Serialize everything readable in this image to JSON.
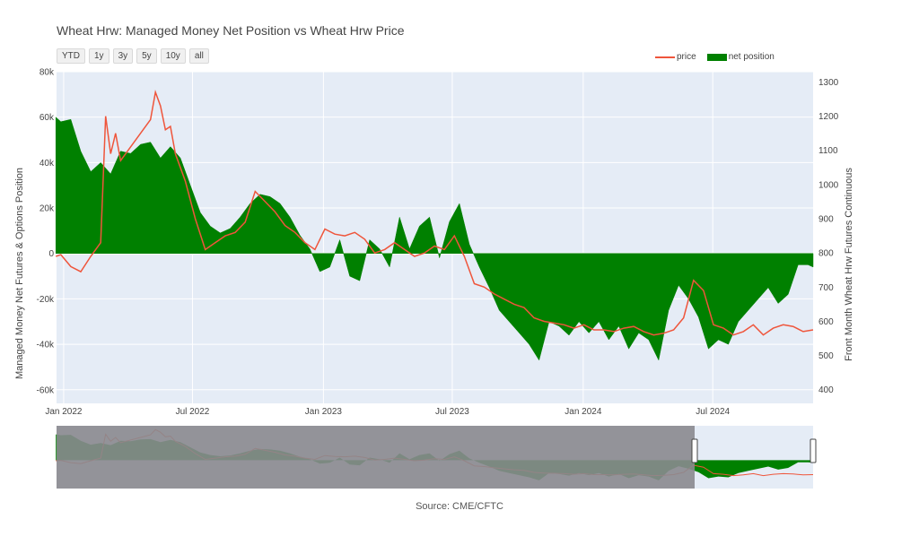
{
  "title": "Wheat Hrw: Managed Money Net Position vs Wheat Hrw Price",
  "range_selector": [
    "YTD",
    "1y",
    "3y",
    "5y",
    "10y",
    "all"
  ],
  "legend": [
    {
      "label": "price",
      "color": "#ef553b",
      "kind": "line"
    },
    {
      "label": "net position",
      "color": "#008000",
      "kind": "fill"
    }
  ],
  "source": "Source: CME/CFTC",
  "colors": {
    "plot_bg": "#e5ecf6",
    "grid": "#ffffff",
    "price": "#ef553b",
    "net": "#008000",
    "slider_mask": "#8a8a8f"
  },
  "chart_data": {
    "type": "area",
    "title": "Wheat Hrw: Managed Money Net Position vs Wheat Hrw Price",
    "x_ticks": [
      "Jan 2022",
      "Jul 2022",
      "Jan 2023",
      "Jul 2023",
      "Jan 2024",
      "Jul 2024"
    ],
    "y_left": {
      "label": "Managed Money Net Futures & Options Position",
      "range": [
        -66000,
        80000
      ],
      "ticks": [
        "80k",
        "60k",
        "40k",
        "20k",
        "0",
        "-20k",
        "-40k",
        "-60k"
      ]
    },
    "y_right": {
      "label": "Front Month Wheat Hrw Futures Continuous",
      "range": [
        360,
        1330
      ],
      "ticks": [
        "1300",
        "1200",
        "1100",
        "1000",
        "900",
        "800",
        "700",
        "600",
        "500",
        "400"
      ]
    },
    "x_range": [
      "2021-12-22",
      "2024-11-19"
    ],
    "series": [
      {
        "name": "net position",
        "axis": "left",
        "kind": "fill",
        "x": [
          "2021-12-21",
          "2021-12-28",
          "2022-01-11",
          "2022-01-25",
          "2022-02-08",
          "2022-02-22",
          "2022-03-08",
          "2022-03-22",
          "2022-04-05",
          "2022-04-19",
          "2022-05-03",
          "2022-05-17",
          "2022-05-31",
          "2022-06-14",
          "2022-06-28",
          "2022-07-12",
          "2022-07-26",
          "2022-08-09",
          "2022-08-23",
          "2022-09-06",
          "2022-09-20",
          "2022-10-04",
          "2022-10-18",
          "2022-11-01",
          "2022-11-15",
          "2022-11-29",
          "2022-12-13",
          "2022-12-27",
          "2023-01-10",
          "2023-01-24",
          "2023-02-07",
          "2023-02-21",
          "2023-03-07",
          "2023-03-21",
          "2023-04-04",
          "2023-04-18",
          "2023-05-02",
          "2023-05-16",
          "2023-05-30",
          "2023-06-13",
          "2023-06-27",
          "2023-07-11",
          "2023-07-25",
          "2023-08-08",
          "2023-08-22",
          "2023-09-05",
          "2023-09-19",
          "2023-10-03",
          "2023-10-17",
          "2023-10-31",
          "2023-11-14",
          "2023-11-28",
          "2023-12-12",
          "2023-12-26",
          "2024-01-09",
          "2024-01-23",
          "2024-02-06",
          "2024-02-20",
          "2024-03-05",
          "2024-03-19",
          "2024-04-02",
          "2024-04-16",
          "2024-04-30",
          "2024-05-14",
          "2024-05-28",
          "2024-06-11",
          "2024-06-25",
          "2024-07-09",
          "2024-07-23",
          "2024-08-06",
          "2024-08-20",
          "2024-09-03",
          "2024-09-17",
          "2024-10-01",
          "2024-10-15",
          "2024-10-29",
          "2024-11-12",
          "2024-11-19"
        ],
        "values": [
          60000,
          58000,
          59000,
          45000,
          36000,
          40000,
          35000,
          45000,
          44000,
          48000,
          49000,
          42000,
          47000,
          42000,
          30000,
          18000,
          12000,
          9000,
          11000,
          16000,
          22000,
          26000,
          25000,
          22000,
          16000,
          8000,
          2000,
          -8000,
          -6000,
          6000,
          -10000,
          -12000,
          6000,
          2000,
          -6000,
          16000,
          2000,
          12000,
          16000,
          -2000,
          14000,
          22000,
          4000,
          -6000,
          -15000,
          -25000,
          -30000,
          -35000,
          -40000,
          -47000,
          -30000,
          -32000,
          -36000,
          -30000,
          -35000,
          -30000,
          -38000,
          -32000,
          -42000,
          -35000,
          -38000,
          -47000,
          -25000,
          -14000,
          -20000,
          -28000,
          -42000,
          -38000,
          -40000,
          -30000,
          -25000,
          -20000,
          -15000,
          -22000,
          -18000,
          -5000,
          -5000,
          -6000
        ]
      },
      {
        "name": "price",
        "axis": "right",
        "kind": "line",
        "x": [
          "2021-12-21",
          "2021-12-28",
          "2022-01-11",
          "2022-01-25",
          "2022-02-08",
          "2022-02-22",
          "2022-03-01",
          "2022-03-08",
          "2022-03-15",
          "2022-03-22",
          "2022-04-05",
          "2022-04-19",
          "2022-05-03",
          "2022-05-10",
          "2022-05-17",
          "2022-05-24",
          "2022-05-31",
          "2022-06-07",
          "2022-06-21",
          "2022-07-05",
          "2022-07-19",
          "2022-08-02",
          "2022-08-16",
          "2022-08-30",
          "2022-09-13",
          "2022-09-27",
          "2022-10-11",
          "2022-10-25",
          "2022-11-08",
          "2022-11-22",
          "2022-12-06",
          "2022-12-20",
          "2023-01-03",
          "2023-01-17",
          "2023-01-31",
          "2023-02-14",
          "2023-02-28",
          "2023-03-14",
          "2023-03-28",
          "2023-04-11",
          "2023-04-25",
          "2023-05-09",
          "2023-05-23",
          "2023-06-06",
          "2023-06-20",
          "2023-07-04",
          "2023-07-18",
          "2023-08-01",
          "2023-08-15",
          "2023-08-29",
          "2023-09-12",
          "2023-09-26",
          "2023-10-10",
          "2023-10-24",
          "2023-11-07",
          "2023-11-21",
          "2023-12-05",
          "2023-12-19",
          "2024-01-02",
          "2024-01-16",
          "2024-01-30",
          "2024-02-13",
          "2024-02-27",
          "2024-03-12",
          "2024-03-26",
          "2024-04-09",
          "2024-04-23",
          "2024-05-07",
          "2024-05-21",
          "2024-06-04",
          "2024-06-18",
          "2024-07-02",
          "2024-07-16",
          "2024-07-30",
          "2024-08-13",
          "2024-08-27",
          "2024-09-10",
          "2024-09-24",
          "2024-10-08",
          "2024-10-22",
          "2024-11-05",
          "2024-11-19"
        ],
        "values": [
          790,
          795,
          760,
          745,
          790,
          830,
          1200,
          1090,
          1150,
          1070,
          1110,
          1150,
          1190,
          1270,
          1230,
          1160,
          1170,
          1090,
          1010,
          900,
          810,
          830,
          850,
          860,
          890,
          980,
          950,
          920,
          880,
          860,
          830,
          810,
          870,
          855,
          850,
          860,
          840,
          800,
          810,
          830,
          810,
          790,
          800,
          820,
          810,
          850,
          790,
          710,
          700,
          680,
          665,
          650,
          640,
          610,
          600,
          595,
          590,
          580,
          590,
          575,
          575,
          570,
          580,
          585,
          570,
          560,
          565,
          575,
          610,
          720,
          690,
          590,
          580,
          560,
          570,
          590,
          560,
          580,
          590,
          585,
          570,
          575
        ]
      }
    ]
  }
}
